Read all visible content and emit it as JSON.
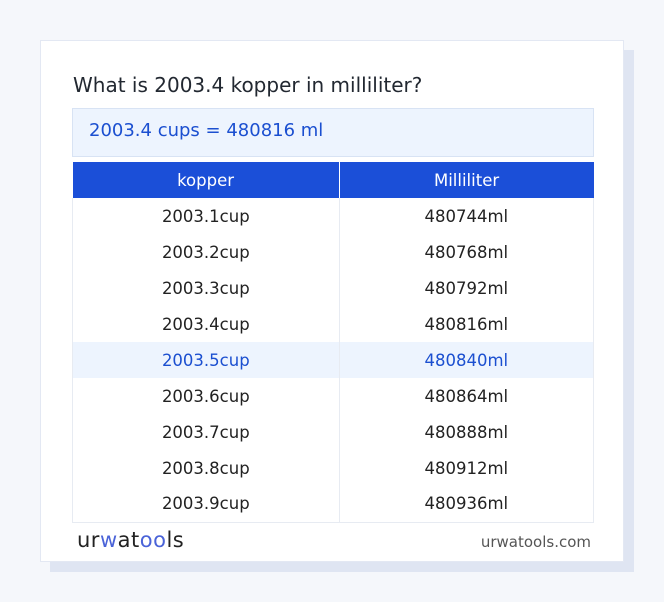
{
  "title": "What is 2003.4 kopper in milliliter?",
  "result": "2003.4 cups = 480816 ml",
  "table": {
    "headers": [
      "kopper",
      "Milliliter"
    ],
    "rows": [
      [
        "2003.1cup",
        "480744ml"
      ],
      [
        "2003.2cup",
        "480768ml"
      ],
      [
        "2003.3cup",
        "480792ml"
      ],
      [
        "2003.4cup",
        "480816ml"
      ],
      [
        "2003.5cup",
        "480840ml"
      ],
      [
        "2003.6cup",
        "480864ml"
      ],
      [
        "2003.7cup",
        "480888ml"
      ],
      [
        "2003.8cup",
        "480912ml"
      ],
      [
        "2003.9cup",
        "480936ml"
      ]
    ],
    "highlighted_row": 4
  },
  "logo": {
    "part1": "ur",
    "part2": "w",
    "part3": "at",
    "part4": "oo",
    "part5": "ls"
  },
  "site": "urwatools.com",
  "colors": {
    "accent": "#1b4fd8",
    "highlight": "#edf4fe"
  }
}
